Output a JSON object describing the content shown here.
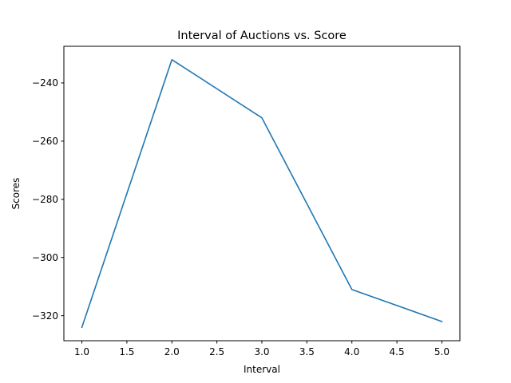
{
  "chart_data": {
    "type": "line",
    "title": "Interval of Auctions vs. Score",
    "xlabel": "Interval",
    "ylabel": "Scores",
    "xlim": [
      0.8,
      5.2
    ],
    "ylim": [
      -328.6,
      -227.4
    ],
    "x_ticks": [
      1.0,
      1.5,
      2.0,
      2.5,
      3.0,
      3.5,
      4.0,
      4.5,
      5.0
    ],
    "x_tick_labels": [
      "1.0",
      "1.5",
      "2.0",
      "2.5",
      "3.0",
      "3.5",
      "4.0",
      "4.5",
      "5.0"
    ],
    "y_ticks": [
      -240,
      -260,
      -280,
      -300,
      -320
    ],
    "y_tick_labels": [
      "−240",
      "−260",
      "−280",
      "−300",
      "−320"
    ],
    "grid": false,
    "series": [
      {
        "color": "#1f77b4",
        "x": [
          1,
          2,
          3,
          4,
          5
        ],
        "y": [
          -324,
          -232,
          -252,
          -311,
          -322
        ]
      }
    ]
  }
}
